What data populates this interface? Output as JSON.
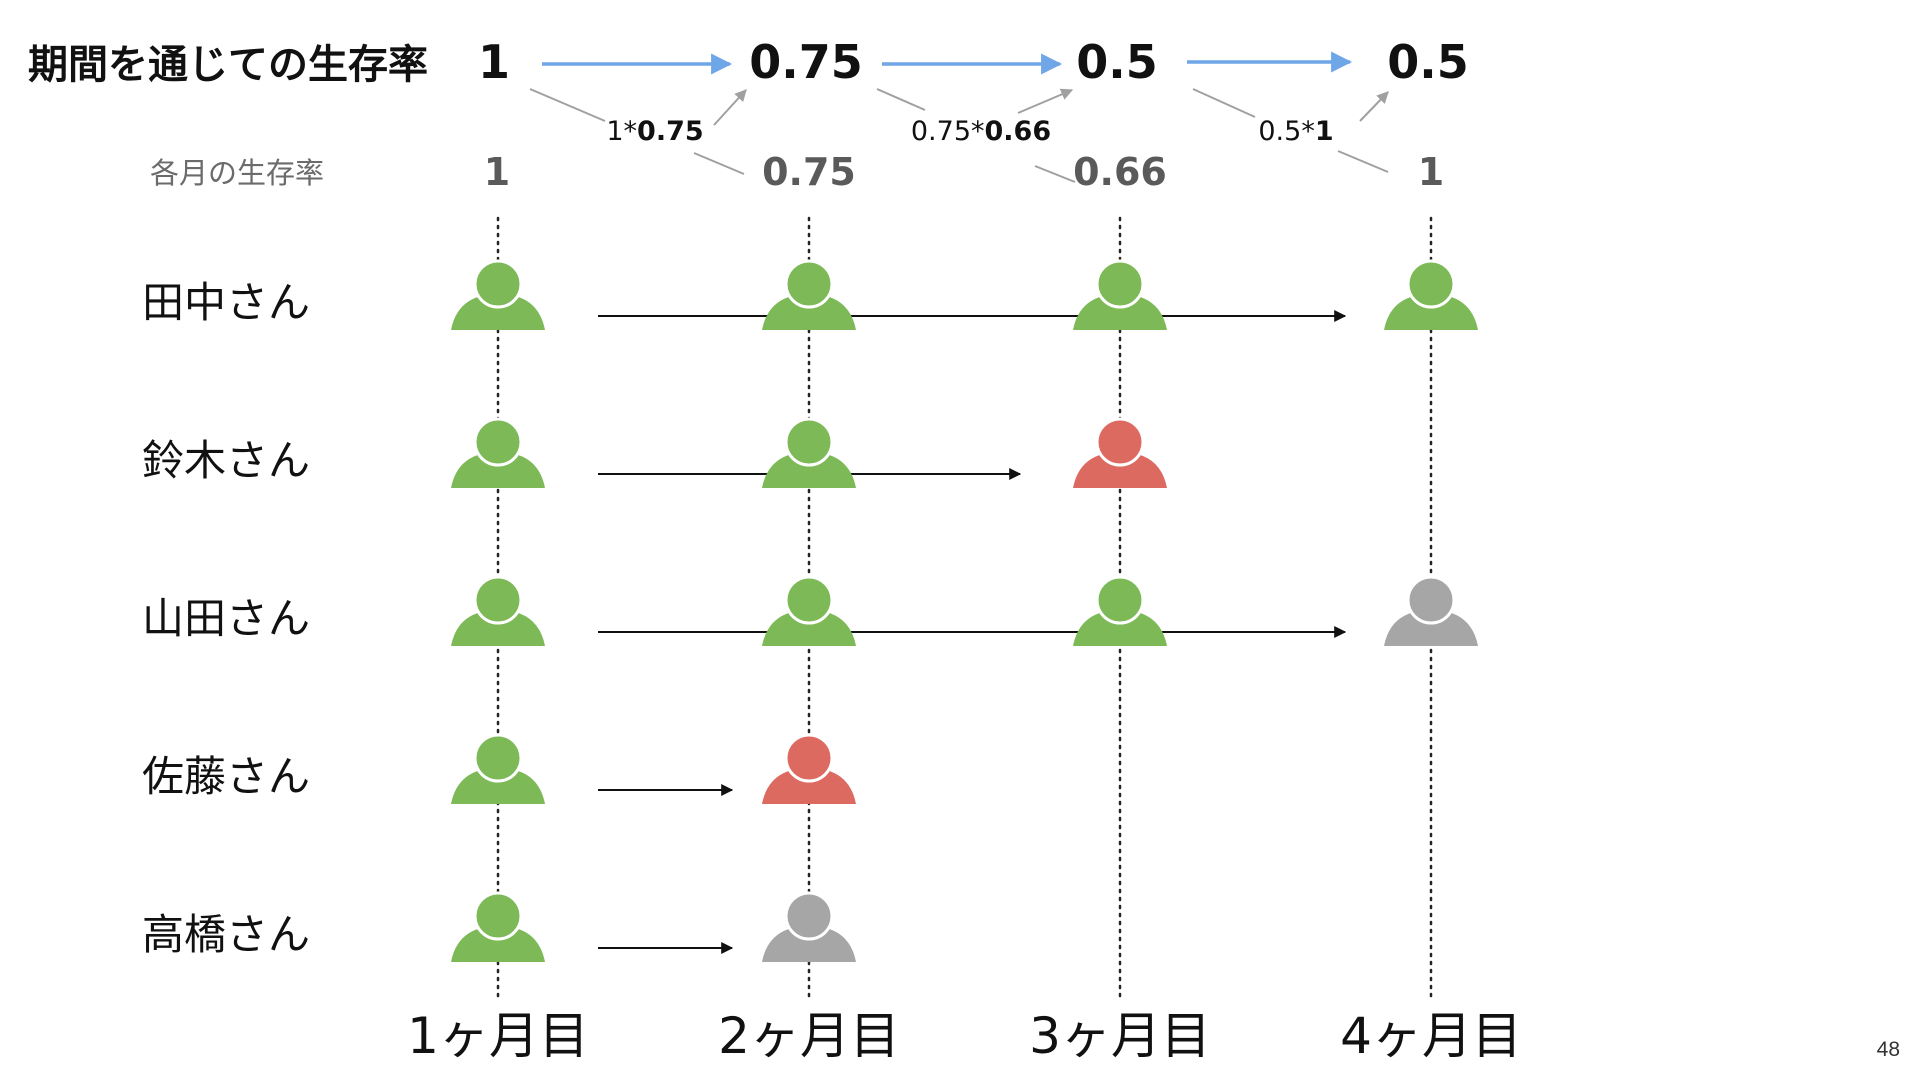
{
  "title": "期間を通じての生存率",
  "monthly_label": "各月の生存率",
  "cumulative_rates": [
    "1",
    "0.75",
    "0.5",
    "0.5"
  ],
  "monthly_rates": [
    "1",
    "0.75",
    "0.66",
    "1"
  ],
  "multipliers": [
    {
      "prev": "1",
      "op": "*",
      "cur": "0.75"
    },
    {
      "prev": "0.75",
      "op": "*",
      "cur": "0.66"
    },
    {
      "prev": "0.5",
      "op": "*",
      "cur": "1"
    }
  ],
  "months": [
    "1ヶ月目",
    "2ヶ月目",
    "3ヶ月目",
    "4ヶ月目"
  ],
  "people": [
    {
      "name": "田中さん",
      "statuses": [
        "active",
        "active",
        "active",
        "active"
      ],
      "arrow_to_month": 4
    },
    {
      "name": "鈴木さん",
      "statuses": [
        "active",
        "active",
        "churned",
        null
      ],
      "arrow_to_month": 3
    },
    {
      "name": "山田さん",
      "statuses": [
        "active",
        "active",
        "active",
        "censored"
      ],
      "arrow_to_month": 4
    },
    {
      "name": "佐藤さん",
      "statuses": [
        "active",
        "churned",
        null,
        null
      ],
      "arrow_to_month": 2
    },
    {
      "name": "高橋さん",
      "statuses": [
        "active",
        "censored",
        null,
        null
      ],
      "arrow_to_month": 2
    }
  ],
  "colors": {
    "active": "#7db957",
    "churned": "#dc6a60",
    "censored": "#a6a6a6",
    "flow_arrow": "#6ea6e8",
    "connector": "#a0a0a0"
  },
  "page_number": "48"
}
